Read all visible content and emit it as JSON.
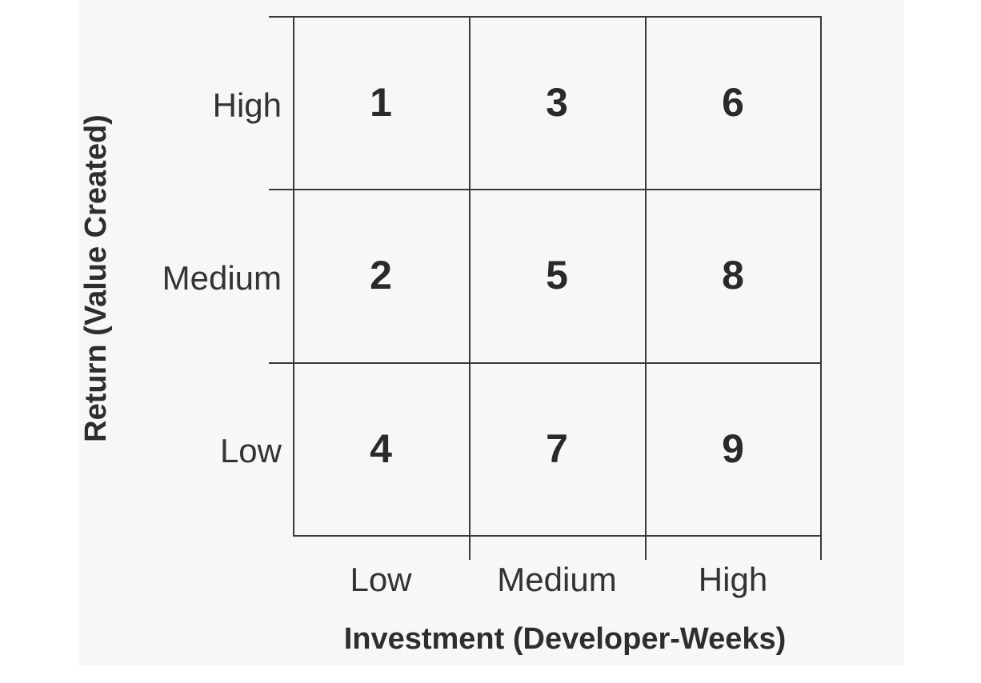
{
  "matrix": {
    "y_axis_title": "Return (Value Created)",
    "x_axis_title": "Investment (Developer-Weeks)",
    "row_labels": [
      "High",
      "Medium",
      "Low"
    ],
    "column_labels": [
      "Low",
      "Medium",
      "High"
    ],
    "cells": [
      [
        "1",
        "3",
        "6"
      ],
      [
        "2",
        "5",
        "8"
      ],
      [
        "4",
        "7",
        "9"
      ]
    ]
  }
}
